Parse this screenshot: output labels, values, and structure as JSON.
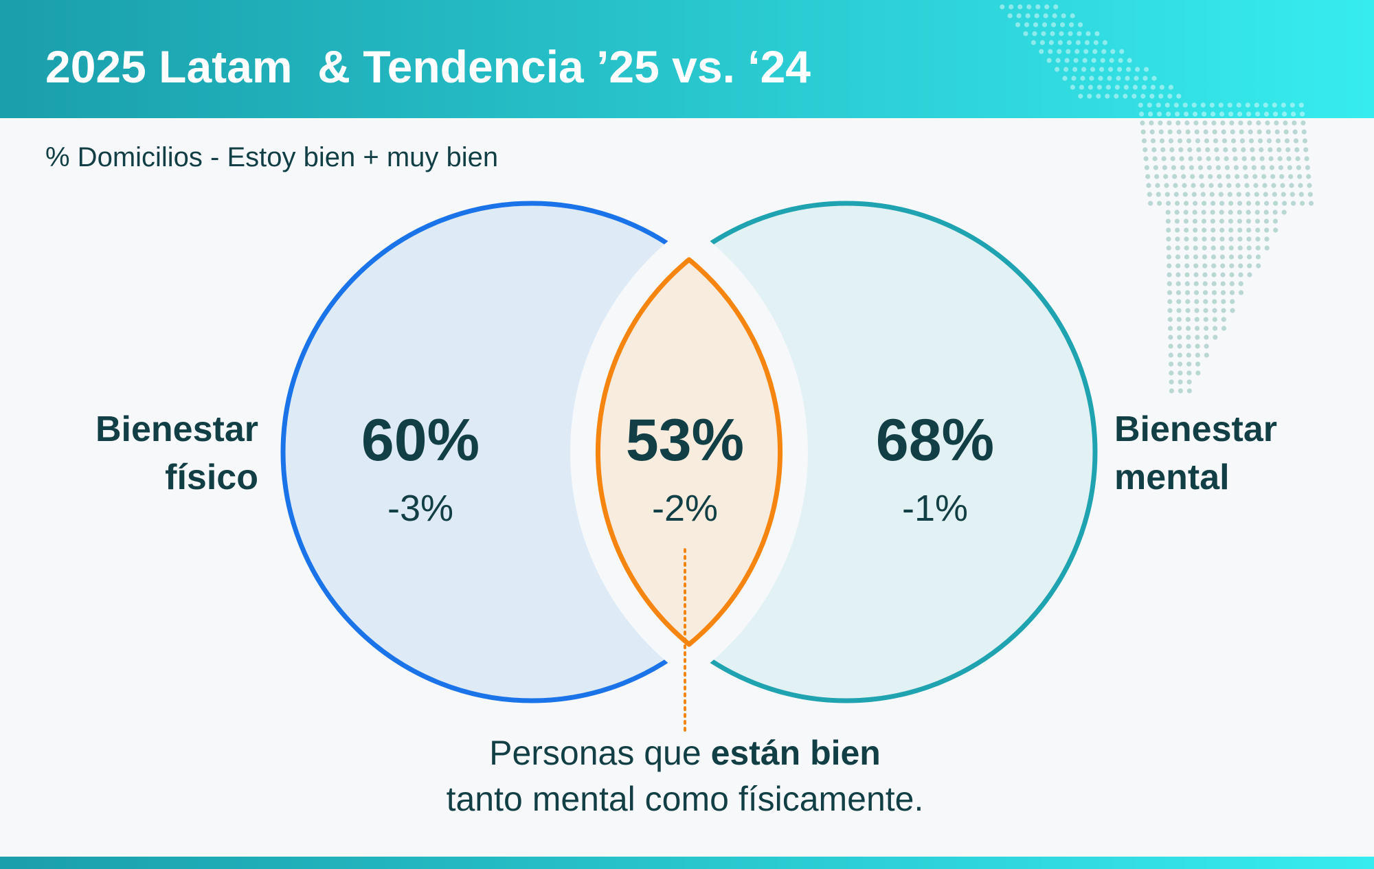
{
  "header": {
    "title": "2025 Latam  & Tendencia ’25 vs. ‘24"
  },
  "subtitle": "% Domicilios - Estoy bien + muy bien",
  "sets": [
    {
      "label_lines": [
        "Bienestar",
        "físico"
      ],
      "value": "60%",
      "change": "-3%"
    },
    {
      "label_lines": [
        "Bienestar",
        "mental"
      ],
      "value": "68%",
      "change": "-1%"
    }
  ],
  "intersection": {
    "value": "53%",
    "change": "-2%"
  },
  "caption": {
    "line1": [
      "Personas que ",
      "están bien"
    ],
    "line2": "tanto mental como físicamente."
  }
}
